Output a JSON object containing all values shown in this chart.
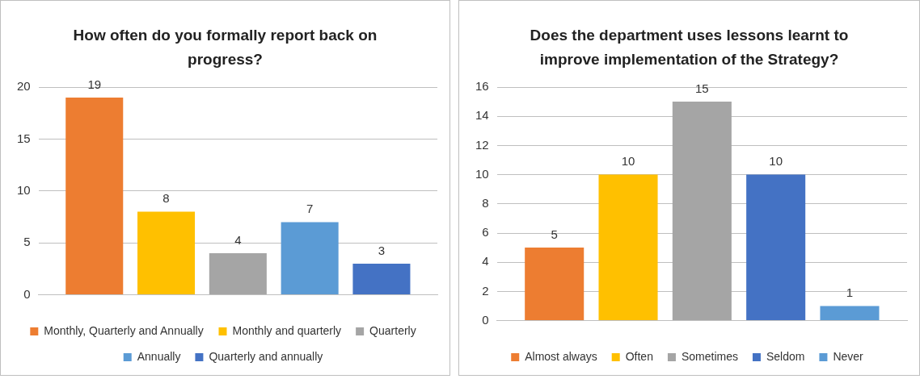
{
  "chart_data": [
    {
      "type": "bar",
      "title": "How often do you formally report back on progress?",
      "categories": [
        null
      ],
      "series": [
        {
          "name": "Monthly, Quarterly and Annually",
          "color": "#ed7d31",
          "values": [
            19
          ]
        },
        {
          "name": "Monthly and quarterly",
          "color": "#ffc000",
          "values": [
            8
          ]
        },
        {
          "name": "Quarterly",
          "color": "#a5a5a5",
          "values": [
            4
          ]
        },
        {
          "name": "Annually",
          "color": "#5b9bd5",
          "values": [
            7
          ]
        },
        {
          "name": "Quarterly and annually",
          "color": "#4472c4",
          "values": [
            3
          ]
        }
      ],
      "ylim": [
        0,
        20
      ],
      "yticks": [
        0,
        5,
        10,
        15,
        20
      ],
      "grid": "y",
      "legend": "bottom",
      "data_labels": true
    },
    {
      "type": "bar",
      "title": "Does the department uses lessons learnt to improve implementation of the Strategy?",
      "categories": [
        null
      ],
      "series": [
        {
          "name": "Almost always",
          "color": "#ed7d31",
          "values": [
            5
          ]
        },
        {
          "name": "Often",
          "color": "#ffc000",
          "values": [
            10
          ]
        },
        {
          "name": "Sometimes",
          "color": "#a5a5a5",
          "values": [
            15
          ]
        },
        {
          "name": "Seldom",
          "color": "#4472c4",
          "values": [
            10
          ]
        },
        {
          "name": "Never",
          "color": "#5b9bd5",
          "values": [
            1
          ]
        }
      ],
      "ylim": [
        0,
        16
      ],
      "yticks": [
        0,
        2,
        4,
        6,
        8,
        10,
        12,
        14,
        16
      ],
      "grid": "y",
      "legend": "bottom",
      "data_labels": true
    }
  ]
}
